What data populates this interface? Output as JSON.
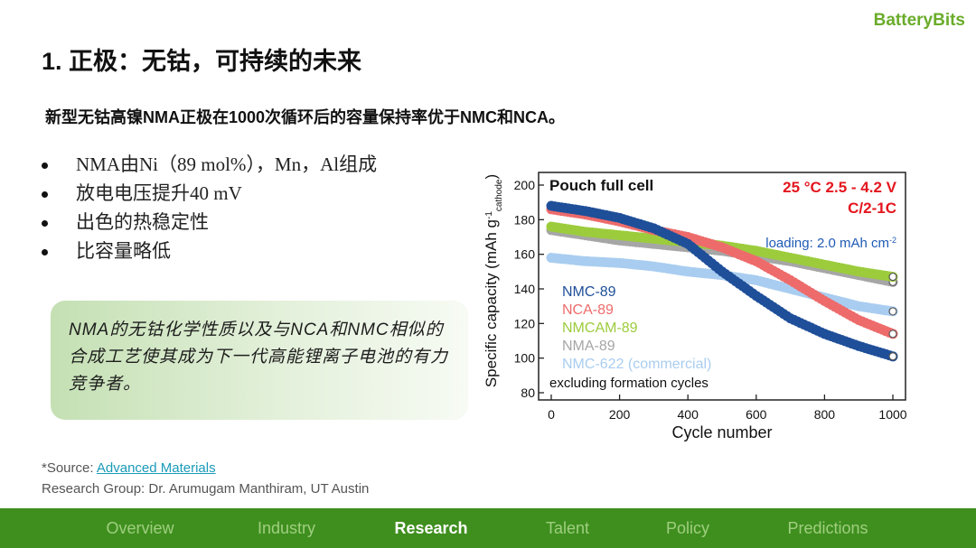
{
  "brand": "BatteryBits",
  "page_title": "1. 正极：无钴，可持续的未来",
  "subtitle": "新型无钴高镍NMA正极在1000次循环后的容量保持率优于NMC和NCA。",
  "bullets": [
    "NMA由Ni（89 mol%），Mn，Al组成",
    "放电电压提升40 mV",
    "出色的热稳定性",
    "比容量略低"
  ],
  "callout": "NMA的无钴化学性质以及与NCA和NMC相似的合成工艺使其成为下一代高能锂离子电池的有力竞争者。",
  "source_label": "*Source: ",
  "source_link": "Advanced Materials",
  "research_group": "Research Group: Dr. Arumugam Manthiram, UT Austin",
  "nav": {
    "items": [
      "Overview",
      "Industry",
      "Research",
      "Talent",
      "Policy",
      "Predictions"
    ],
    "active": "Research"
  },
  "colors": {
    "brand_green": "#6aac2a",
    "nav_bg": "#3f8f1f",
    "red": "#e4161e",
    "blue": "#1f5bb5"
  },
  "chart_data": {
    "type": "scatter",
    "title": "Pouch full cell",
    "conditions": "25 °C  2.5 - 4.2 V",
    "rate": "C/2-1C",
    "loading": "loading: 2.0 mAh cm",
    "loading_sup": "-2",
    "footnote": "excluding formation cycles",
    "xlabel": "Cycle number",
    "ylabel": "Specific capacity (mAh g",
    "ylabel_sup": "-1",
    "ylabel_sub": "cathode",
    "ylabel_end": ")",
    "xlim": [
      0,
      1000
    ],
    "ylim": [
      80,
      200
    ],
    "xticks": [
      0,
      200,
      400,
      600,
      800,
      1000
    ],
    "yticks": [
      80,
      100,
      120,
      140,
      160,
      180,
      200
    ],
    "series": [
      {
        "name": "NMC-622 (commercial)",
        "color": "#a9cdf0",
        "x": [
          0,
          100,
          200,
          300,
          400,
          500,
          600,
          700,
          800,
          900,
          1000
        ],
        "y": [
          158,
          156,
          155,
          153,
          150,
          148,
          145,
          140,
          135,
          130,
          127
        ]
      },
      {
        "name": "NMA-89",
        "color": "#a6a6a6",
        "x": [
          0,
          100,
          200,
          300,
          400,
          500,
          600,
          700,
          800,
          900,
          1000
        ],
        "y": [
          174,
          171,
          168,
          166,
          164,
          162,
          159,
          156,
          152,
          148,
          144
        ]
      },
      {
        "name": "NMCAM-89",
        "color": "#9ccc3c",
        "x": [
          0,
          100,
          200,
          300,
          400,
          500,
          600,
          700,
          800,
          900,
          1000
        ],
        "y": [
          176,
          173,
          171,
          169,
          167,
          165,
          162,
          158,
          154,
          150,
          147
        ]
      },
      {
        "name": "NCA-89",
        "color": "#ee6b6b",
        "x": [
          0,
          100,
          200,
          300,
          400,
          500,
          600,
          700,
          800,
          900,
          1000
        ],
        "y": [
          186,
          183,
          179,
          174,
          170,
          164,
          156,
          145,
          133,
          122,
          114
        ]
      },
      {
        "name": "NMC-89",
        "color": "#1f4f99",
        "x": [
          0,
          100,
          200,
          300,
          400,
          500,
          600,
          700,
          800,
          900,
          1000
        ],
        "y": [
          188,
          185,
          181,
          175,
          166,
          150,
          136,
          123,
          114,
          107,
          101
        ]
      }
    ],
    "legend_order": [
      "NMC-89",
      "NCA-89",
      "NMCAM-89",
      "NMA-89",
      "NMC-622 (commercial)"
    ]
  }
}
